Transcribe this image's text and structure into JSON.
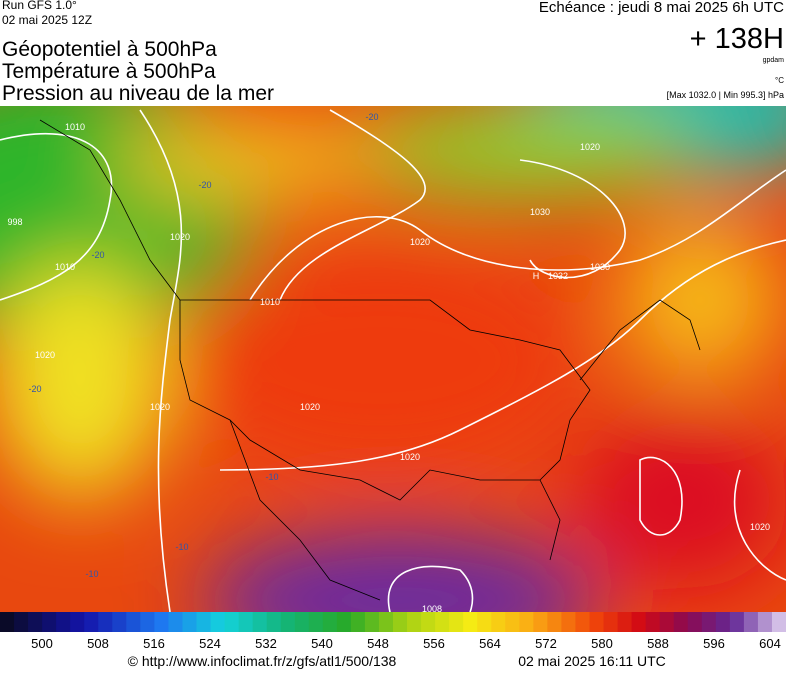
{
  "header": {
    "run": "Run GFS 1.0°",
    "run_date": "02 mai 2025 12Z",
    "titles": [
      "Géopotentiel à 500hPa",
      "Température à 500hPa",
      "Pression au niveau de la mer"
    ],
    "echeance": "Echéance : jeudi 8 mai 2025 6h UTC",
    "lead": "+ 138H",
    "unit_geo": "gpdam",
    "unit_temp": "°C",
    "pressure_range": "[Max 1032.0 | Min 995.3] hPa"
  },
  "map": {
    "labels": [
      "1010",
      "998",
      "1010",
      "1020",
      "1010",
      "1020",
      "1020",
      "1032",
      "1030",
      "1030",
      "1020",
      "1020",
      "1020",
      "1020",
      "1020",
      "1008",
      "H",
      "-20",
      "-20",
      "-20",
      "-20",
      "-10",
      "-10",
      "-10"
    ]
  },
  "colorbar": {
    "labels": [
      "500",
      "508",
      "516",
      "524",
      "532",
      "540",
      "548",
      "556",
      "564",
      "572",
      "580",
      "588",
      "596",
      "604"
    ]
  },
  "footer": {
    "url": "© http://www.infoclimat.fr/z/gfs/atl1/500/138",
    "timestamp": "02 mai 2025 16:11 UTC"
  }
}
